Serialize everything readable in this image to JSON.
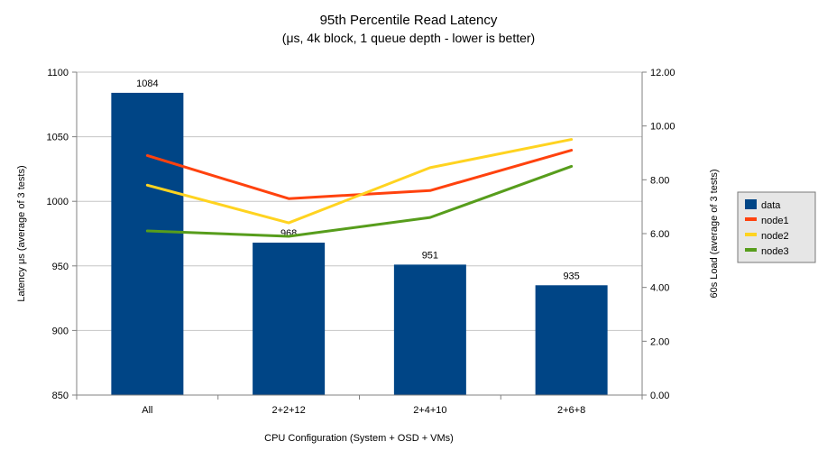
{
  "chart_data": {
    "type": "bar",
    "title": "95th Percentile Read Latency",
    "subtitle": "(μs, 4k block, 1 queue depth - lower is better)",
    "xlabel": "CPU Configuration (System + OSD + VMs)",
    "ylabel_left": "Latency μs (average of 3 tests)",
    "ylabel_right": "60s Load (average of 3 tests)",
    "categories": [
      "All",
      "2+2+12",
      "2+4+10",
      "2+6+8"
    ],
    "bar_series": {
      "name": "data",
      "color": "#004586",
      "axis": "left",
      "values": [
        1084,
        968,
        951,
        935
      ],
      "labels": [
        "1084",
        "968",
        "951",
        "935"
      ]
    },
    "line_series": [
      {
        "name": "node1",
        "color": "#ff420e",
        "axis": "right",
        "values": [
          8.9,
          7.3,
          7.6,
          9.1
        ]
      },
      {
        "name": "node2",
        "color": "#ffd320",
        "axis": "right",
        "values": [
          7.8,
          6.4,
          8.45,
          9.5
        ]
      },
      {
        "name": "node3",
        "color": "#579d1c",
        "axis": "right",
        "values": [
          6.1,
          5.9,
          6.6,
          8.5
        ]
      }
    ],
    "y_left": {
      "min": 850,
      "max": 1100,
      "ticks": [
        850,
        900,
        950,
        1000,
        1050,
        1100
      ],
      "tick_labels": [
        "850",
        "900",
        "950",
        "1000",
        "1050",
        "1100"
      ]
    },
    "y_right": {
      "min": 0,
      "max": 12,
      "ticks": [
        0,
        2,
        4,
        6,
        8,
        10,
        12
      ],
      "tick_labels": [
        "0.00",
        "2.00",
        "4.00",
        "6.00",
        "8.00",
        "10.00",
        "12.00"
      ]
    },
    "legend": {
      "position": "right",
      "entries": [
        "data",
        "node1",
        "node2",
        "node3"
      ]
    },
    "grid": "horizontal",
    "colors": {
      "grid": "#c6c6c6",
      "axis": "#808080",
      "legend_bg": "#e6e6e6",
      "legend_border": "#787878"
    }
  }
}
